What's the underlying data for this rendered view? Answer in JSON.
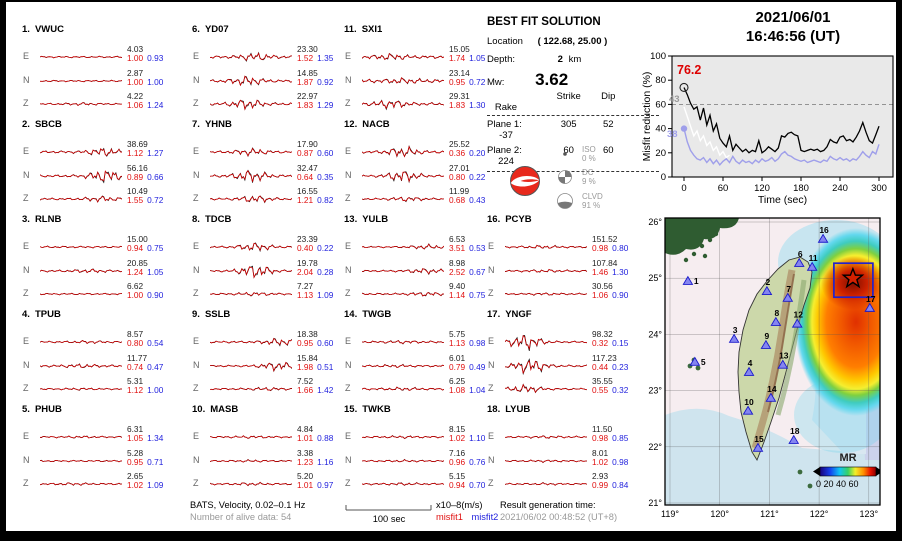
{
  "header": {
    "date": "2021/06/01",
    "time": "16:46:56  (UT)"
  },
  "best_fit": {
    "title": "BEST FIT SOLUTION",
    "location_label": "Location",
    "location_value": "( 122.68,  25.00 )",
    "depth_label": "Depth:",
    "depth_value": "2",
    "depth_unit": "km",
    "mw_label": "Mw:",
    "mw_value": "3.62",
    "plane_cols": {
      "strike": "Strike",
      "dip": "Dip",
      "rake": "Rake"
    },
    "planes": [
      {
        "label": "Plane 1:",
        "strike": "305",
        "dip": "52",
        "rake": "-37"
      },
      {
        "label": "Plane 2:",
        "strike": "60",
        "dip": "60",
        "rake": "224"
      }
    ],
    "decomposition": [
      {
        "name": "ISO",
        "pct": "0 %"
      },
      {
        "name": "DC",
        "pct": "9 %"
      },
      {
        "name": "CLVD",
        "pct": "91 %"
      }
    ]
  },
  "stations": [
    {
      "num": "1.",
      "name": "VWUC",
      "comps": [
        {
          "label": "E",
          "amp": "4.03",
          "m1": "1.00",
          "m2": "0.93",
          "act": 0.8,
          "burst": 0,
          "bpos": 0.5
        },
        {
          "label": "N",
          "amp": "2.87",
          "m1": "1.00",
          "m2": "1.00",
          "act": 0.8,
          "burst": 0,
          "bpos": 0.5
        },
        {
          "label": "Z",
          "amp": "4.22",
          "m1": "1.06",
          "m2": "1.24",
          "act": 0.8,
          "burst": 0.8,
          "bpos": 0.5
        }
      ]
    },
    {
      "num": "2.",
      "name": "SBCB",
      "comps": [
        {
          "label": "E",
          "amp": "38.69",
          "m1": "1.12",
          "m2": "1.27",
          "act": 1.2,
          "burst": 3.5,
          "bpos": 0.78
        },
        {
          "label": "N",
          "amp": "56.16",
          "m1": "0.89",
          "m2": "0.66",
          "act": 1.2,
          "burst": 6,
          "bpos": 0.8
        },
        {
          "label": "Z",
          "amp": "10.49",
          "m1": "1.55",
          "m2": "0.72",
          "act": 1.0,
          "burst": 2.2,
          "bpos": 0.75
        }
      ]
    },
    {
      "num": "3.",
      "name": "RLNB",
      "comps": [
        {
          "label": "E",
          "amp": "15.00",
          "m1": "0.94",
          "m2": "0.75",
          "act": 0.9,
          "burst": 0,
          "bpos": 0.5
        },
        {
          "label": "N",
          "amp": "20.85",
          "m1": "1.24",
          "m2": "1.05",
          "act": 1.0,
          "burst": 1.2,
          "bpos": 0.6
        },
        {
          "label": "Z",
          "amp": "6.62",
          "m1": "1.00",
          "m2": "0.90",
          "act": 0.8,
          "burst": 0,
          "bpos": 0.5
        }
      ]
    },
    {
      "num": "4.",
      "name": "TPUB",
      "comps": [
        {
          "label": "E",
          "amp": "8.57",
          "m1": "0.80",
          "m2": "0.54",
          "act": 0.9,
          "burst": 0.8,
          "bpos": 0.6
        },
        {
          "label": "N",
          "amp": "11.77",
          "m1": "0.74",
          "m2": "0.47",
          "act": 1.1,
          "burst": 1.2,
          "bpos": 0.5
        },
        {
          "label": "Z",
          "amp": "5.31",
          "m1": "1.12",
          "m2": "1.00",
          "act": 0.8,
          "burst": 0.5,
          "bpos": 0.5
        }
      ]
    },
    {
      "num": "5.",
      "name": "PHUB",
      "comps": [
        {
          "label": "E",
          "amp": "6.31",
          "m1": "1.05",
          "m2": "1.34",
          "act": 0.8,
          "burst": 0.5,
          "bpos": 0.5
        },
        {
          "label": "N",
          "amp": "5.28",
          "m1": "0.95",
          "m2": "0.71",
          "act": 0.8,
          "burst": 0,
          "bpos": 0.5
        },
        {
          "label": "Z",
          "amp": "2.65",
          "m1": "1.02",
          "m2": "1.09",
          "act": 0.9,
          "burst": 0.6,
          "bpos": 0.4
        }
      ]
    },
    {
      "num": "6.",
      "name": "YD07",
      "comps": [
        {
          "label": "E",
          "amp": "23.30",
          "m1": "1.52",
          "m2": "1.35",
          "act": 1.3,
          "burst": 3.2,
          "bpos": 0.55
        },
        {
          "label": "N",
          "amp": "14.85",
          "m1": "1.87",
          "m2": "0.92",
          "act": 1.2,
          "burst": 4.2,
          "bpos": 0.45
        },
        {
          "label": "Z",
          "amp": "22.97",
          "m1": "1.83",
          "m2": "1.29",
          "act": 1.2,
          "burst": 4.5,
          "bpos": 0.45
        }
      ]
    },
    {
      "num": "7.",
      "name": "YHNB",
      "comps": [
        {
          "label": "E",
          "amp": "17.90",
          "m1": "0.87",
          "m2": "0.60",
          "act": 1.1,
          "burst": 2.8,
          "bpos": 0.5
        },
        {
          "label": "N",
          "amp": "32.47",
          "m1": "0.64",
          "m2": "0.35",
          "act": 1.2,
          "burst": 5.5,
          "bpos": 0.5
        },
        {
          "label": "Z",
          "amp": "16.55",
          "m1": "1.21",
          "m2": "0.82",
          "act": 1.0,
          "burst": 3.0,
          "bpos": 0.55
        }
      ]
    },
    {
      "num": "8.",
      "name": "TDCB",
      "comps": [
        {
          "label": "E",
          "amp": "23.39",
          "m1": "0.40",
          "m2": "0.22",
          "act": 0.9,
          "burst": 3.8,
          "bpos": 0.55
        },
        {
          "label": "N",
          "amp": "19.78",
          "m1": "2.04",
          "m2": "0.28",
          "act": 0.9,
          "burst": 6.5,
          "bpos": 0.55
        },
        {
          "label": "Z",
          "amp": "7.27",
          "m1": "1.13",
          "m2": "1.09",
          "act": 0.9,
          "burst": 1.2,
          "bpos": 0.55
        }
      ]
    },
    {
      "num": "9.",
      "name": "SSLB",
      "comps": [
        {
          "label": "E",
          "amp": "18.38",
          "m1": "0.95",
          "m2": "0.60",
          "act": 1.0,
          "burst": 3.2,
          "bpos": 0.85
        },
        {
          "label": "N",
          "amp": "15.84",
          "m1": "1.98",
          "m2": "0.51",
          "act": 0.9,
          "burst": 4.0,
          "bpos": 0.82
        },
        {
          "label": "Z",
          "amp": "7.52",
          "m1": "1.66",
          "m2": "1.42",
          "act": 0.9,
          "burst": 1.0,
          "bpos": 0.7
        }
      ]
    },
    {
      "num": "10.",
      "name": "MASB",
      "comps": [
        {
          "label": "E",
          "amp": "4.84",
          "m1": "1.01",
          "m2": "0.88",
          "act": 0.9,
          "burst": 0.6,
          "bpos": 0.5
        },
        {
          "label": "N",
          "amp": "3.38",
          "m1": "1.23",
          "m2": "1.16",
          "act": 0.8,
          "burst": 0.5,
          "bpos": 0.5
        },
        {
          "label": "Z",
          "amp": "5.20",
          "m1": "1.01",
          "m2": "0.97",
          "act": 0.9,
          "burst": 0.8,
          "bpos": 0.5
        }
      ]
    },
    {
      "num": "11.",
      "name": "SXI1",
      "comps": [
        {
          "label": "E",
          "amp": "15.05",
          "m1": "1.74",
          "m2": "1.05",
          "act": 1.5,
          "burst": 2.2,
          "bpos": 0.35
        },
        {
          "label": "N",
          "amp": "23.14",
          "m1": "0.95",
          "m2": "0.72",
          "act": 1.8,
          "burst": 1.5,
          "bpos": 0.5
        },
        {
          "label": "Z",
          "amp": "29.31",
          "m1": "1.83",
          "m2": "1.30",
          "act": 1.4,
          "burst": 3.5,
          "bpos": 0.35
        }
      ]
    },
    {
      "num": "12.",
      "name": "NACB",
      "comps": [
        {
          "label": "E",
          "amp": "25.52",
          "m1": "0.36",
          "m2": "0.20",
          "act": 1.2,
          "burst": 4.5,
          "bpos": 0.5
        },
        {
          "label": "N",
          "amp": "27.01",
          "m1": "0.80",
          "m2": "0.22",
          "act": 1.0,
          "burst": 5.5,
          "bpos": 0.5
        },
        {
          "label": "Z",
          "amp": "11.99",
          "m1": "0.68",
          "m2": "0.43",
          "act": 0.9,
          "burst": 1.8,
          "bpos": 0.55
        }
      ]
    },
    {
      "num": "13.",
      "name": "YULB",
      "comps": [
        {
          "label": "E",
          "amp": "6.53",
          "m1": "3.51",
          "m2": "0.53",
          "act": 0.8,
          "burst": 1.8,
          "bpos": 0.8
        },
        {
          "label": "N",
          "amp": "8.98",
          "m1": "2.52",
          "m2": "0.67",
          "act": 0.9,
          "burst": 2.2,
          "bpos": 0.78
        },
        {
          "label": "Z",
          "amp": "9.40",
          "m1": "1.14",
          "m2": "0.75",
          "act": 0.9,
          "burst": 1.5,
          "bpos": 0.78
        }
      ]
    },
    {
      "num": "14.",
      "name": "TWGB",
      "comps": [
        {
          "label": "E",
          "amp": "5.75",
          "m1": "1.13",
          "m2": "0.98",
          "act": 1.0,
          "burst": 0.8,
          "bpos": 0.5
        },
        {
          "label": "N",
          "amp": "6.01",
          "m1": "0.79",
          "m2": "0.49",
          "act": 0.9,
          "burst": 0.8,
          "bpos": 0.4
        },
        {
          "label": "Z",
          "amp": "6.25",
          "m1": "1.08",
          "m2": "1.04",
          "act": 1.0,
          "burst": 0.9,
          "bpos": 0.5
        }
      ]
    },
    {
      "num": "15.",
      "name": "TWKB",
      "comps": [
        {
          "label": "E",
          "amp": "8.15",
          "m1": "1.02",
          "m2": "1.10",
          "act": 0.9,
          "burst": 0.6,
          "bpos": 0.5
        },
        {
          "label": "N",
          "amp": "7.16",
          "m1": "0.96",
          "m2": "0.76",
          "act": 0.8,
          "burst": 0.5,
          "bpos": 0.5
        },
        {
          "label": "Z",
          "amp": "5.15",
          "m1": "0.94",
          "m2": "0.70",
          "act": 0.9,
          "burst": 0.6,
          "bpos": 0.5
        }
      ]
    },
    {
      "num": "16.",
      "name": "PCYB",
      "comps": [
        {
          "label": "E",
          "amp": "151.52",
          "m1": "0.98",
          "m2": "0.80",
          "act": 0.9,
          "burst": 1.0,
          "bpos": 0.45
        },
        {
          "label": "N",
          "amp": "107.84",
          "m1": "1.46",
          "m2": "1.30",
          "act": 0.9,
          "burst": 0.8,
          "bpos": 0.5
        },
        {
          "label": "Z",
          "amp": "30.56",
          "m1": "1.06",
          "m2": "0.90",
          "act": 0.8,
          "burst": 0.6,
          "bpos": 0.5
        }
      ]
    },
    {
      "num": "17.",
      "name": "YNGF",
      "comps": [
        {
          "label": "E",
          "amp": "98.32",
          "m1": "0.32",
          "m2": "0.15",
          "act": 0.9,
          "burst": 7.5,
          "bpos": 0.25
        },
        {
          "label": "N",
          "amp": "117.23",
          "m1": "0.44",
          "m2": "0.23",
          "act": 1.0,
          "burst": 7.0,
          "bpos": 0.3
        },
        {
          "label": "Z",
          "amp": "35.55",
          "m1": "0.55",
          "m2": "0.32",
          "act": 0.9,
          "burst": 3.5,
          "bpos": 0.25
        }
      ]
    },
    {
      "num": "18.",
      "name": "LYUB",
      "comps": [
        {
          "label": "E",
          "amp": "11.50",
          "m1": "0.98",
          "m2": "0.85",
          "act": 0.9,
          "burst": 0.6,
          "bpos": 0.5
        },
        {
          "label": "N",
          "amp": "8.01",
          "m1": "1.02",
          "m2": "0.98",
          "act": 0.8,
          "burst": 0.5,
          "bpos": 0.5
        },
        {
          "label": "Z",
          "amp": "2.93",
          "m1": "0.99",
          "m2": "0.84",
          "act": 0.8,
          "burst": 0.5,
          "bpos": 0.5
        }
      ]
    }
  ],
  "chart_data": {
    "type": "line",
    "title": "",
    "xlabel": "Time (sec)",
    "ylabel": "Misfit reduction (%)",
    "xlim": [
      0,
      300
    ],
    "ylim": [
      0,
      100
    ],
    "xticks": [
      "0",
      "60",
      "120",
      "180",
      "240",
      "300"
    ],
    "yticks": [
      "0",
      "20",
      "40",
      "60",
      "80",
      "100"
    ],
    "grid": false,
    "background": "#e9e9e9",
    "dashed_threshold": 60,
    "x_step": 5,
    "series": [
      {
        "name": "reference-misfit",
        "color": "#ffffff",
        "label": "43",
        "label_color": "#9a9a9a",
        "values": [
          58,
          50,
          42,
          34,
          38,
          30,
          34,
          26,
          29,
          22,
          25,
          18,
          21,
          16,
          18
        ]
      },
      {
        "name": "misfit2",
        "color": "#9f9fea",
        "label": "38",
        "label_color": "#9f9fea",
        "marker": "filled-circle",
        "values": [
          40,
          29,
          22,
          18,
          15,
          14,
          16,
          12,
          15,
          11,
          14,
          10,
          13,
          15,
          12,
          17,
          13,
          11,
          14,
          12,
          13,
          11,
          14,
          12,
          15,
          13,
          14,
          16,
          13,
          15,
          19,
          21,
          18,
          17,
          15,
          14,
          13,
          14,
          12,
          13,
          14,
          13,
          12,
          14,
          13,
          17,
          15,
          14,
          16,
          14,
          15,
          13,
          15,
          14,
          17,
          21,
          18,
          16,
          21,
          19,
          27
        ]
      },
      {
        "name": "misfit1-best",
        "color": "#000000",
        "label": "76.2",
        "label_color": "#dd0000",
        "marker": "open-circle",
        "values": [
          74,
          68,
          61,
          56,
          58,
          47,
          57,
          43,
          51,
          38,
          44,
          32,
          28,
          25,
          34,
          22,
          27,
          24,
          21,
          23,
          20,
          22,
          21,
          30,
          20,
          22,
          25,
          23,
          21,
          24,
          34,
          33,
          36,
          37,
          35,
          34,
          22,
          21,
          22,
          23,
          22,
          23,
          21,
          22,
          25,
          31,
          29,
          28,
          33,
          34,
          30,
          31,
          29,
          33,
          38,
          45,
          37,
          30,
          28,
          35,
          42
        ]
      }
    ]
  },
  "map": {
    "lon_ticks": [
      "119°",
      "120°",
      "121°",
      "122°",
      "123°"
    ],
    "lat_ticks": [
      "26°",
      "25°",
      "24°",
      "23°",
      "22°",
      "21°"
    ],
    "epicenter": {
      "lon": 122.68,
      "lat": 25.0
    },
    "colorbar": {
      "title": "MR",
      "labels": "0  20 40 60"
    },
    "stations": [
      {
        "id": "1",
        "lon": 119.36,
        "lat": 24.95,
        "lp": "r"
      },
      {
        "id": "2",
        "lon": 120.95,
        "lat": 24.77
      },
      {
        "id": "3",
        "lon": 120.29,
        "lat": 23.92
      },
      {
        "id": "4",
        "lon": 120.59,
        "lat": 23.33
      },
      {
        "id": "5",
        "lon": 119.5,
        "lat": 23.51,
        "lp": "r"
      },
      {
        "id": "6",
        "lon": 121.6,
        "lat": 25.27
      },
      {
        "id": "7",
        "lon": 121.37,
        "lat": 24.65
      },
      {
        "id": "8",
        "lon": 121.13,
        "lat": 24.22
      },
      {
        "id": "9",
        "lon": 120.93,
        "lat": 23.81
      },
      {
        "id": "10",
        "lon": 120.57,
        "lat": 22.64
      },
      {
        "id": "11",
        "lon": 121.86,
        "lat": 25.2
      },
      {
        "id": "12",
        "lon": 121.56,
        "lat": 24.19
      },
      {
        "id": "13",
        "lon": 121.27,
        "lat": 23.46
      },
      {
        "id": "14",
        "lon": 121.03,
        "lat": 22.87
      },
      {
        "id": "15",
        "lon": 120.77,
        "lat": 21.98
      },
      {
        "id": "16",
        "lon": 122.08,
        "lat": 25.7
      },
      {
        "id": "17",
        "lon": 123.02,
        "lat": 24.47
      },
      {
        "id": "18",
        "lon": 121.49,
        "lat": 22.12
      }
    ]
  },
  "footer": {
    "line1": "BATS, Velocity, 0.02–0.1 Hz",
    "line2": "Number of alive data: 54",
    "scale_label": "100 sec",
    "units": "x10–8(m/s)",
    "legend1": "misfit1",
    "legend2": "misfit2",
    "gen_label": "Result generation time:",
    "gen_value": "2021/06/02 00:48:52 (UT+8)"
  }
}
